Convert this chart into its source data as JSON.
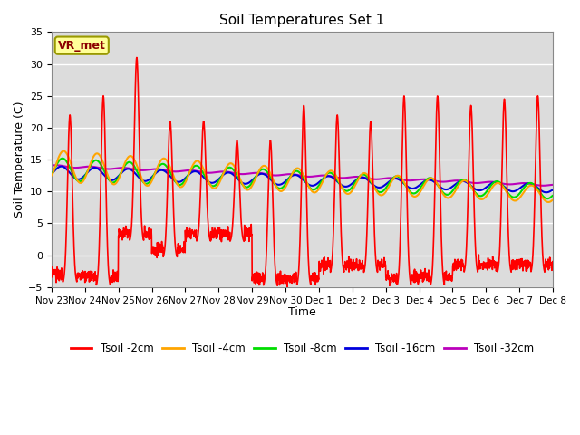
{
  "title": "Soil Temperatures Set 1",
  "xlabel": "Time",
  "ylabel": "Soil Temperature (C)",
  "ylim": [
    -5,
    35
  ],
  "annotation_text": "VR_met",
  "bg_color": "#dcdcdc",
  "series_colors": {
    "Tsoil -2cm": "#ff0000",
    "Tsoil -4cm": "#ffa500",
    "Tsoil -8cm": "#00dd00",
    "Tsoil -16cm": "#0000dd",
    "Tsoil -32cm": "#bb00bb"
  },
  "x_tick_labels": [
    "Nov 23",
    "Nov 24",
    "Nov 25",
    "Nov 26",
    "Nov 27",
    "Nov 28",
    "Nov 29",
    "Nov 30",
    "Dec 1",
    "Dec 2",
    "Dec 3",
    "Dec 4",
    "Dec 5",
    "Dec 6",
    "Dec 7",
    "Dec 8"
  ],
  "yticks": [
    -5,
    0,
    5,
    10,
    15,
    20,
    25,
    30,
    35
  ],
  "line_width": 1.2,
  "figsize": [
    6.4,
    4.8
  ],
  "dpi": 100
}
